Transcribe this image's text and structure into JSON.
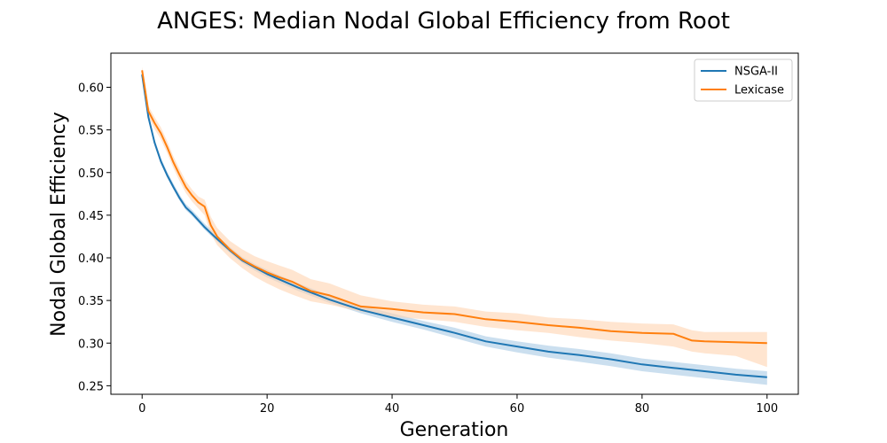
{
  "chart_data": {
    "type": "line",
    "title": "ANGES: Median Nodal Global Efficiency from Root",
    "xlabel": "Generation",
    "ylabel": "Nodal Global Efficiency",
    "xlim": [
      -5,
      105
    ],
    "ylim": [
      0.24,
      0.64
    ],
    "xticks": [
      0,
      20,
      40,
      60,
      80,
      100
    ],
    "yticks": [
      0.25,
      0.3,
      0.35,
      0.4,
      0.45,
      0.5,
      0.55,
      0.6
    ],
    "ytick_labels": [
      "0.25",
      "0.30",
      "0.35",
      "0.40",
      "0.45",
      "0.50",
      "0.55",
      "0.60"
    ],
    "grid": false,
    "legend_position": "top-right",
    "series": [
      {
        "name": "NSGA-II",
        "color": "#1f77b4",
        "band_color": "#a9c9e4",
        "x": [
          0,
          1,
          2,
          3,
          4,
          5,
          6,
          7,
          8,
          10,
          12,
          14,
          16,
          18,
          20,
          25,
          30,
          35,
          40,
          45,
          50,
          55,
          60,
          65,
          70,
          75,
          80,
          85,
          90,
          95,
          100
        ],
        "y": [
          0.615,
          0.565,
          0.535,
          0.513,
          0.497,
          0.483,
          0.47,
          0.459,
          0.452,
          0.436,
          0.422,
          0.409,
          0.397,
          0.389,
          0.381,
          0.365,
          0.351,
          0.339,
          0.33,
          0.321,
          0.312,
          0.302,
          0.296,
          0.29,
          0.286,
          0.281,
          0.275,
          0.271,
          0.267,
          0.263,
          0.26
        ],
        "lower": [
          0.612,
          0.562,
          0.532,
          0.51,
          0.494,
          0.48,
          0.467,
          0.456,
          0.449,
          0.433,
          0.419,
          0.406,
          0.394,
          0.385,
          0.377,
          0.361,
          0.347,
          0.335,
          0.325,
          0.316,
          0.306,
          0.296,
          0.289,
          0.283,
          0.278,
          0.273,
          0.267,
          0.263,
          0.259,
          0.255,
          0.251
        ],
        "upper": [
          0.619,
          0.569,
          0.539,
          0.517,
          0.501,
          0.487,
          0.474,
          0.463,
          0.456,
          0.44,
          0.426,
          0.413,
          0.401,
          0.393,
          0.386,
          0.37,
          0.356,
          0.344,
          0.335,
          0.326,
          0.318,
          0.308,
          0.302,
          0.297,
          0.293,
          0.288,
          0.282,
          0.278,
          0.274,
          0.27,
          0.267
        ]
      },
      {
        "name": "Lexicase",
        "color": "#ff7f0e",
        "band_color": "#ffd4b0",
        "x": [
          0,
          1,
          2,
          3,
          4,
          5,
          6,
          7,
          8,
          9,
          10,
          11,
          12,
          14,
          16,
          18,
          20,
          22,
          24,
          27,
          30,
          35,
          40,
          45,
          50,
          55,
          60,
          65,
          70,
          75,
          80,
          85,
          88,
          90,
          95,
          100
        ],
        "y": [
          0.62,
          0.572,
          0.558,
          0.546,
          0.53,
          0.512,
          0.497,
          0.483,
          0.473,
          0.465,
          0.46,
          0.438,
          0.425,
          0.41,
          0.398,
          0.39,
          0.383,
          0.377,
          0.372,
          0.361,
          0.356,
          0.343,
          0.34,
          0.336,
          0.334,
          0.328,
          0.325,
          0.321,
          0.318,
          0.314,
          0.312,
          0.311,
          0.303,
          0.302,
          0.301,
          0.3
        ],
        "lower": [
          0.612,
          0.566,
          0.551,
          0.539,
          0.523,
          0.505,
          0.49,
          0.476,
          0.466,
          0.458,
          0.45,
          0.428,
          0.415,
          0.4,
          0.388,
          0.378,
          0.37,
          0.363,
          0.357,
          0.349,
          0.345,
          0.337,
          0.331,
          0.328,
          0.325,
          0.319,
          0.315,
          0.312,
          0.307,
          0.303,
          0.3,
          0.296,
          0.29,
          0.288,
          0.285,
          0.272
        ],
        "upper": [
          0.624,
          0.578,
          0.565,
          0.553,
          0.537,
          0.519,
          0.504,
          0.49,
          0.48,
          0.472,
          0.468,
          0.448,
          0.435,
          0.42,
          0.41,
          0.402,
          0.396,
          0.391,
          0.386,
          0.375,
          0.37,
          0.356,
          0.349,
          0.345,
          0.343,
          0.337,
          0.335,
          0.33,
          0.328,
          0.325,
          0.323,
          0.322,
          0.315,
          0.313,
          0.313,
          0.313
        ]
      }
    ]
  }
}
